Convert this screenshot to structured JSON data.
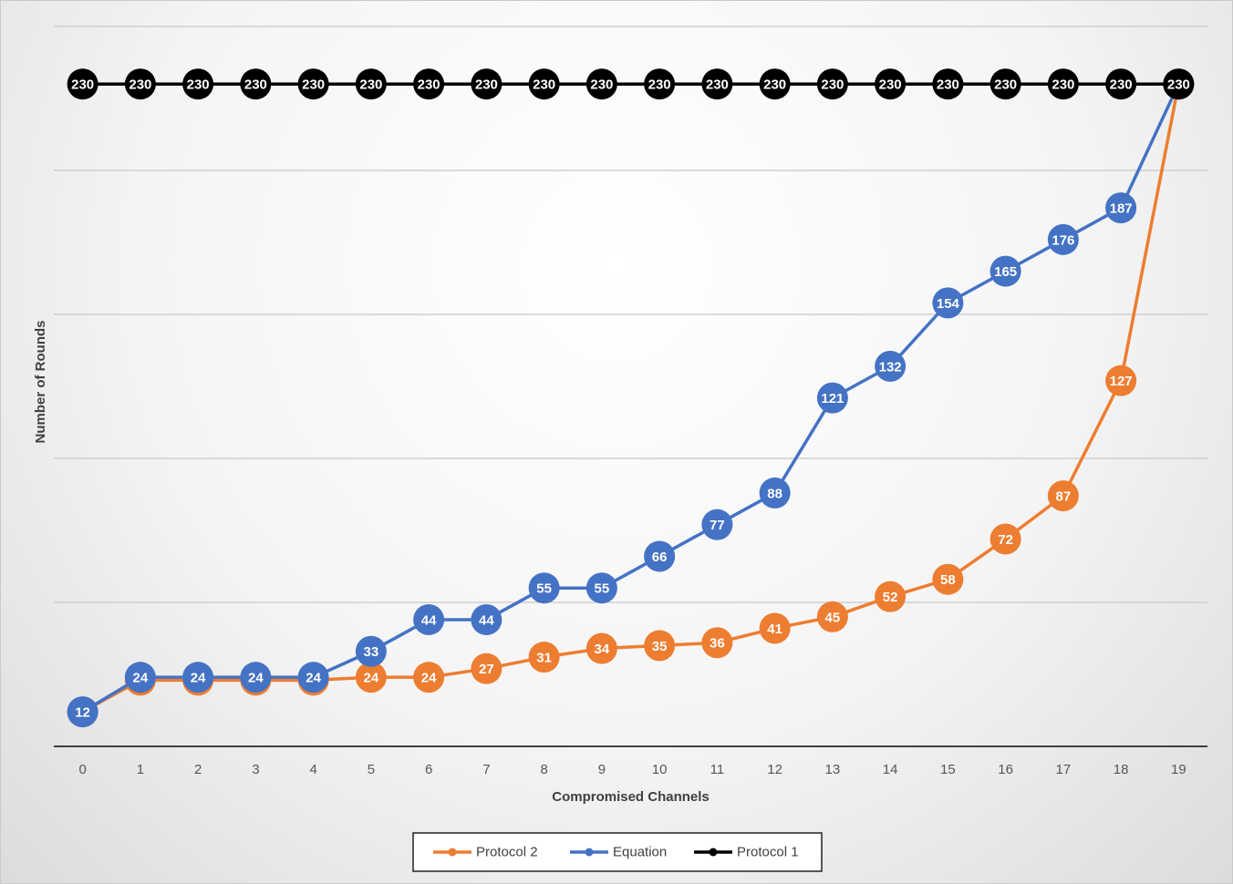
{
  "chart_data": {
    "type": "line",
    "xlabel": "Compromised Channels",
    "ylabel": "Number of Rounds",
    "categories": [
      "0",
      "1",
      "2",
      "3",
      "4",
      "5",
      "6",
      "7",
      "8",
      "9",
      "10",
      "11",
      "12",
      "13",
      "14",
      "15",
      "16",
      "17",
      "18",
      "19"
    ],
    "ylim": [
      0,
      250
    ],
    "grid": true,
    "legend_position": "bottom",
    "series": [
      {
        "name": "Protocol 2",
        "color": "#ED7D31",
        "values": [
          12,
          23,
          23,
          23,
          23,
          24,
          24,
          27,
          31,
          34,
          35,
          36,
          41,
          45,
          52,
          58,
          72,
          87,
          127,
          230
        ]
      },
      {
        "name": "Equation",
        "color": "#4472C4",
        "values": [
          12,
          24,
          24,
          24,
          24,
          33,
          44,
          44,
          55,
          55,
          66,
          77,
          88,
          121,
          132,
          154,
          165,
          176,
          187,
          230
        ]
      },
      {
        "name": "Protocol 1",
        "color": "#000000",
        "values": [
          230,
          230,
          230,
          230,
          230,
          230,
          230,
          230,
          230,
          230,
          230,
          230,
          230,
          230,
          230,
          230,
          230,
          230,
          230,
          230
        ]
      }
    ]
  }
}
